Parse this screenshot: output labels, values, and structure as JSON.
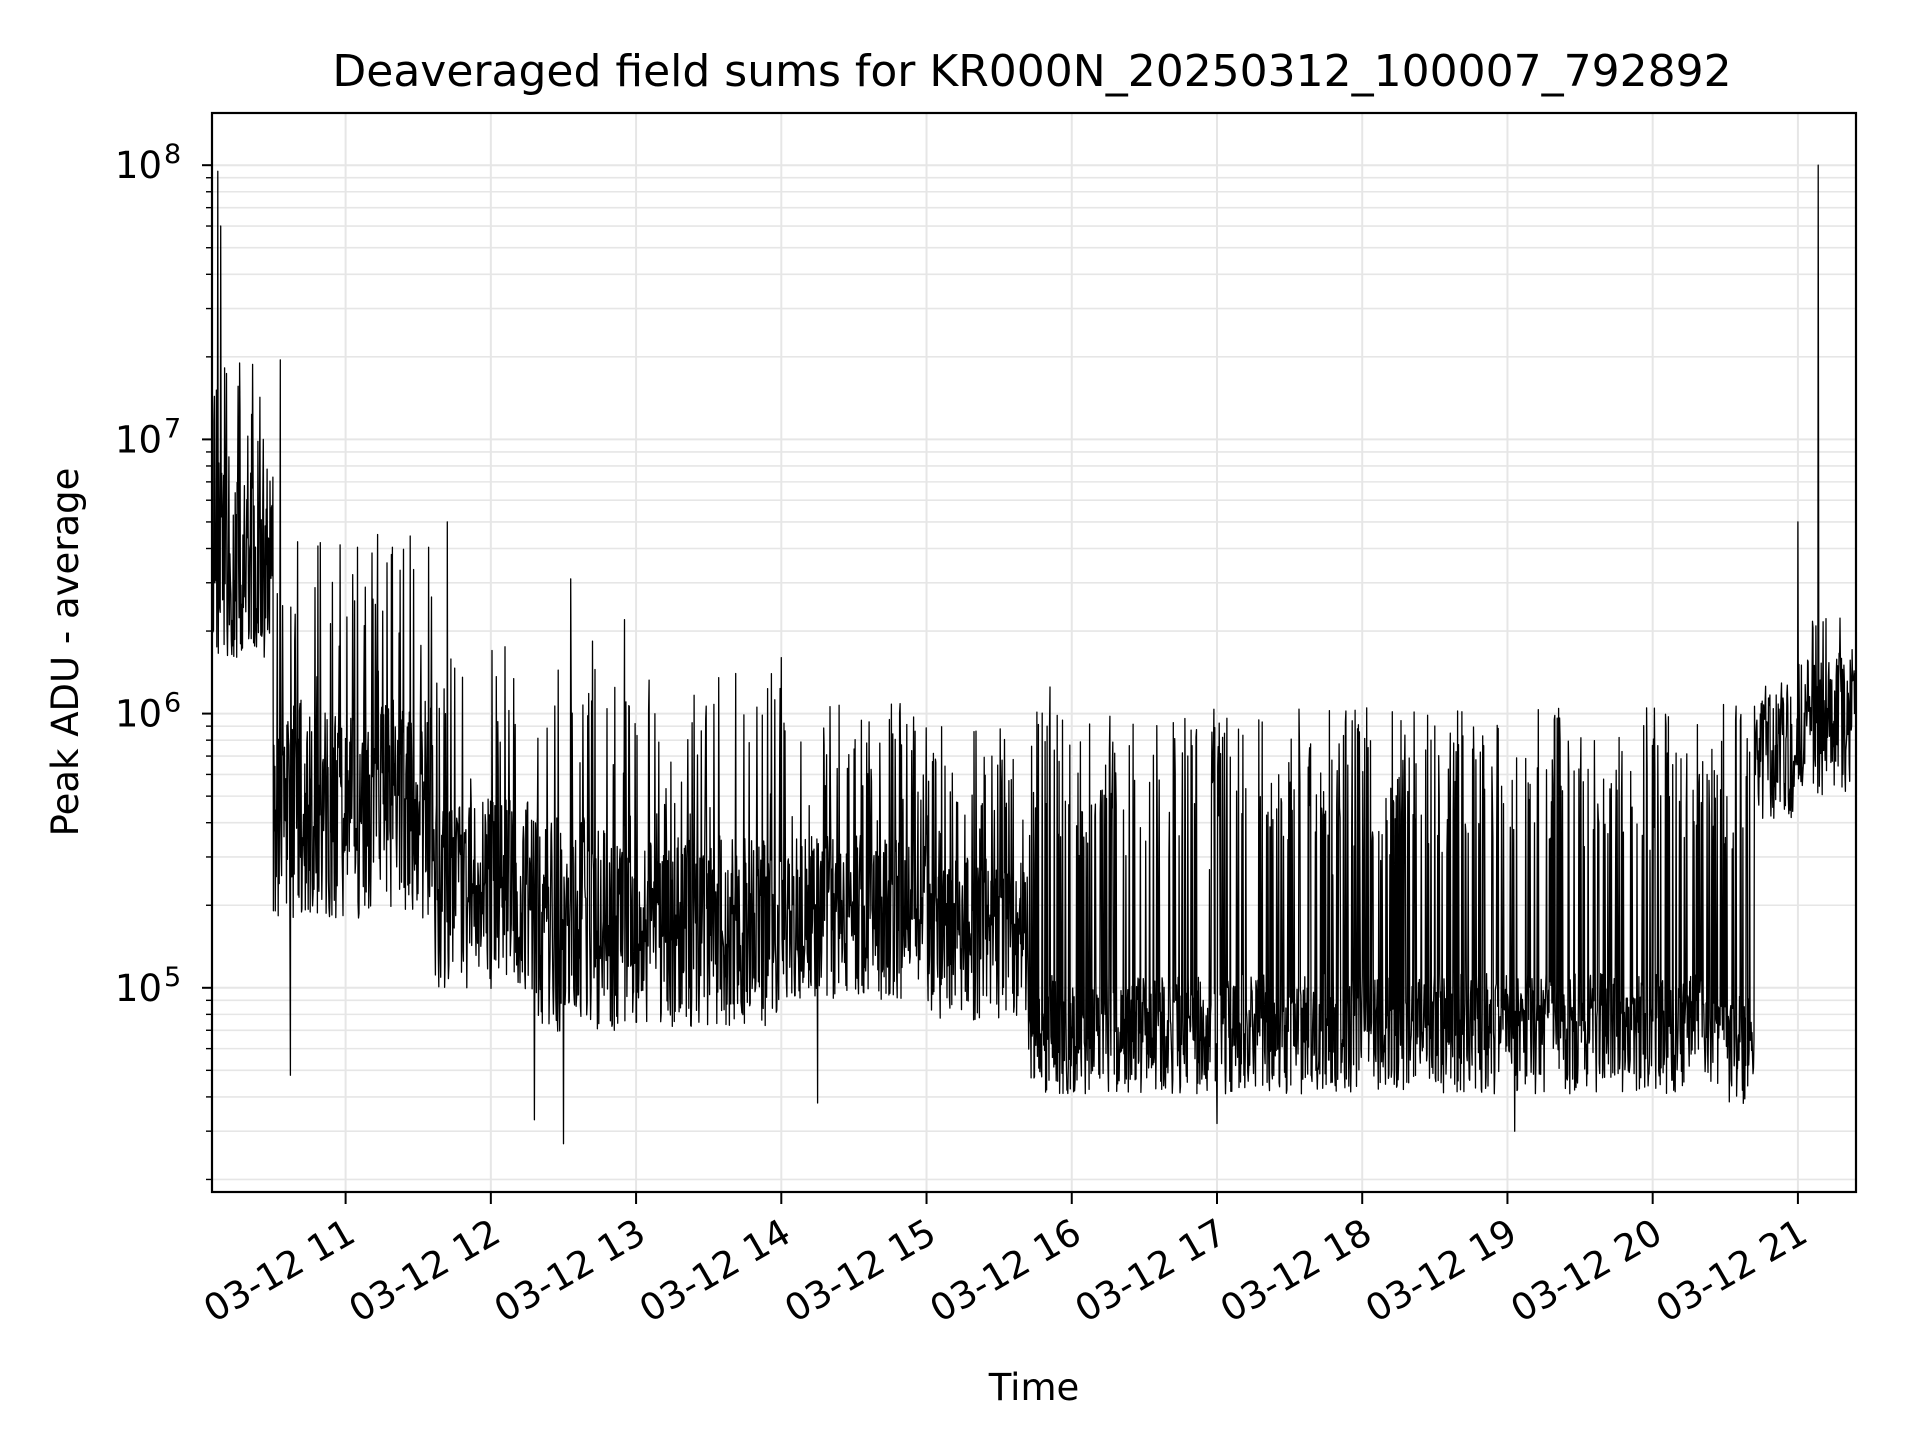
{
  "chart_data": {
    "type": "line",
    "title": "Deaveraged field sums for KR000N_20250312_100007_792892",
    "xlabel": "Time",
    "ylabel": "Peak ADU - average",
    "yscale": "log",
    "ylim": [
      18000,
      155000000
    ],
    "xlim_hours": [
      10.08,
      21.4
    ],
    "grid": true,
    "line_color": "#000000",
    "grid_color": "#e6e6e6",
    "x_ticks": [
      {
        "value": 11,
        "label": "03-12 11"
      },
      {
        "value": 12,
        "label": "03-12 12"
      },
      {
        "value": 13,
        "label": "03-12 13"
      },
      {
        "value": 14,
        "label": "03-12 14"
      },
      {
        "value": 15,
        "label": "03-12 15"
      },
      {
        "value": 16,
        "label": "03-12 16"
      },
      {
        "value": 17,
        "label": "03-12 17"
      },
      {
        "value": 18,
        "label": "03-12 18"
      },
      {
        "value": 19,
        "label": "03-12 19"
      },
      {
        "value": 20,
        "label": "03-12 20"
      },
      {
        "value": 21,
        "label": "03-12 21"
      }
    ],
    "y_ticks": [
      {
        "value": 100000,
        "base": "10",
        "exp": "5"
      },
      {
        "value": 1000000,
        "base": "10",
        "exp": "6"
      },
      {
        "value": 10000000,
        "base": "10",
        "exp": "7"
      },
      {
        "value": 100000000,
        "base": "10",
        "exp": "8"
      }
    ],
    "series": [
      {
        "name": "Peak ADU - average",
        "segments": [
          {
            "t0": 10.08,
            "t1": 10.5,
            "base": 3500000,
            "spread": 0.35,
            "spike_prob": 0.15,
            "spike_max": 19000000
          },
          {
            "t0": 10.5,
            "t1": 11.6,
            "base": 450000,
            "spread": 0.4,
            "spike_prob": 0.12,
            "spike_max": 4500000
          },
          {
            "t0": 11.6,
            "t1": 12.3,
            "base": 220000,
            "spread": 0.35,
            "spike_prob": 0.1,
            "spike_max": 2000000
          },
          {
            "t0": 12.3,
            "t1": 13.0,
            "base": 170000,
            "spread": 0.4,
            "spike_prob": 0.1,
            "spike_max": 2200000
          },
          {
            "t0": 13.0,
            "t1": 14.0,
            "base": 160000,
            "spread": 0.35,
            "spike_prob": 0.12,
            "spike_max": 1500000
          },
          {
            "t0": 14.0,
            "t1": 15.0,
            "base": 180000,
            "spread": 0.3,
            "spike_prob": 0.15,
            "spike_max": 1100000
          },
          {
            "t0": 15.0,
            "t1": 15.7,
            "base": 150000,
            "spread": 0.3,
            "spike_prob": 0.15,
            "spike_max": 900000
          },
          {
            "t0": 15.7,
            "t1": 20.4,
            "base": 68000,
            "spread": 0.22,
            "spike_prob": 0.22,
            "spike_max": 1050000
          },
          {
            "t0": 20.4,
            "t1": 20.7,
            "base": 60000,
            "spread": 0.2,
            "spike_prob": 0.2,
            "spike_max": 1200000
          },
          {
            "t0": 20.7,
            "t1": 21.0,
            "base": 700000,
            "spread": 0.25,
            "spike_prob": 0.1,
            "spike_max": 1300000
          },
          {
            "t0": 21.0,
            "t1": 21.4,
            "base": 900000,
            "spread": 0.25,
            "spike_prob": 0.12,
            "spike_max": 2300000
          }
        ],
        "peaks": [
          {
            "t": 10.12,
            "y": 95000000
          },
          {
            "t": 10.14,
            "y": 60000000
          },
          {
            "t": 10.27,
            "y": 19000000
          },
          {
            "t": 10.55,
            "y": 19500000
          },
          {
            "t": 11.22,
            "y": 4500000
          },
          {
            "t": 11.7,
            "y": 5000000
          },
          {
            "t": 12.55,
            "y": 3100000
          },
          {
            "t": 12.92,
            "y": 2200000
          },
          {
            "t": 14.0,
            "y": 1600000
          },
          {
            "t": 15.85,
            "y": 1250000
          },
          {
            "t": 21.0,
            "y": 5000000
          },
          {
            "t": 21.14,
            "y": 100000000
          }
        ],
        "dips": [
          {
            "t": 10.62,
            "y": 48000
          },
          {
            "t": 12.5,
            "y": 27000
          },
          {
            "t": 12.3,
            "y": 33000
          },
          {
            "t": 14.25,
            "y": 38000
          },
          {
            "t": 17.0,
            "y": 32000
          },
          {
            "t": 19.05,
            "y": 30000
          }
        ]
      }
    ]
  }
}
